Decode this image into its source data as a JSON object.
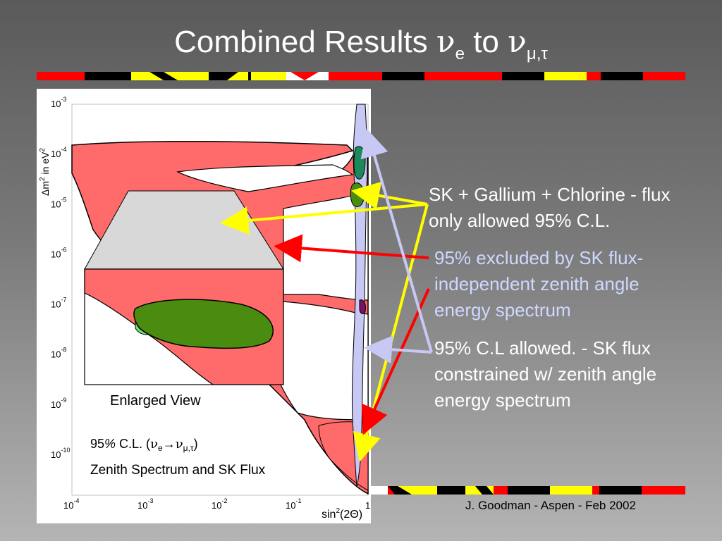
{
  "slide": {
    "title_prefix": "Combined Results ",
    "title_nu": "ν",
    "title_sub_e": "e",
    "title_to": " to ",
    "title_nu2": "ν",
    "title_sub_mt": "μ,τ",
    "credit": "J. Goodman   -  Aspen - Feb 2002"
  },
  "annotations": {
    "sk_gallium": "SK + Gallium + Chlorine - flux only allowed 95% C.L.",
    "excluded": "95% excluded by SK flux-independent zenith angle energy spectrum",
    "allowed": "95% C.L allowed.  - SK flux constrained w/ zenith angle energy spectrum"
  },
  "colors": {
    "excluded_fill": "#ff6b6b",
    "allowed_sk_fill": "#c8c8f4",
    "allowed_combined_fill": "#4a8c10",
    "allowed_light_green": "#70e070",
    "arrow_yellow": "#ffff00",
    "arrow_red": "#ff0000",
    "arrow_lavender": "#c8c8f4",
    "strip_red": "#ff0000",
    "strip_yellow": "#ffff00",
    "strip_black": "#000000"
  },
  "chart_data": {
    "type": "contour",
    "xlabel_base": "sin",
    "xlabel_sup": "2",
    "xlabel_rest": "(2Θ)",
    "ylabel_prefix": "Δm",
    "ylabel_sup": "2",
    "ylabel_mid": " in eV",
    "ylabel_sup2": "2",
    "x_scale": "log",
    "y_scale": "log",
    "xlim": [
      0.0001,
      1
    ],
    "ylim": [
      1e-10,
      0.001
    ],
    "x_ticks": [
      {
        "base": "10",
        "exp": "-4"
      },
      {
        "base": "10",
        "exp": "-3"
      },
      {
        "base": "10",
        "exp": "-2"
      },
      {
        "base": "10",
        "exp": "-1"
      },
      {
        "base": "",
        "exp": "",
        "label": "1"
      }
    ],
    "y_ticks": [
      {
        "base": "10",
        "exp": "-3"
      },
      {
        "base": "10",
        "exp": "-4"
      },
      {
        "base": "10",
        "exp": "-5"
      },
      {
        "base": "10",
        "exp": "-6"
      },
      {
        "base": "10",
        "exp": "-7"
      },
      {
        "base": "10",
        "exp": "-8"
      },
      {
        "base": "10",
        "exp": "-9"
      },
      {
        "base": "10",
        "exp": "-10"
      }
    ],
    "inset_label": "Enlarged View",
    "legend_cl_prefix": "95",
    "legend_pct": "%",
    "legend_cl_rest": " C.L. (",
    "legend_nu": "ν",
    "legend_e": "e",
    "legend_arrow": "→",
    "legend_nu2": "ν",
    "legend_mt": "μ,τ",
    "legend_close": ")",
    "legend_line2": "Zenith Spectrum and SK Flux",
    "regions": [
      {
        "name": "excluded",
        "color": "#ff6b6b"
      },
      {
        "name": "SK allowed",
        "color": "#c8c8f4"
      },
      {
        "name": "combined allowed",
        "color": "#4a8c10"
      }
    ]
  }
}
